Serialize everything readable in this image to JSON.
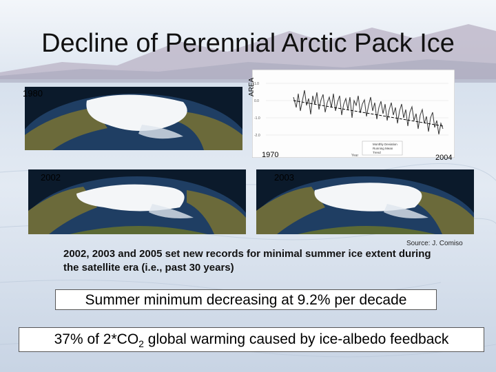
{
  "slide": {
    "title": "Decline of Perennial Arctic Pack Ice",
    "labels": {
      "y1980": "1980",
      "y2002": "2002",
      "y2003": "2003"
    },
    "chart": {
      "ylabel": "AREA",
      "xstart": "1970",
      "xend": "2004",
      "xlabel": "Year",
      "legend": [
        "Monthly Deviation",
        "Running Mean",
        "Trend"
      ]
    },
    "source": "Source: J. Comiso",
    "caption": "2002, 2003 and 2005 set new records for minimal summer ice extent during the satellite era (i.e., past 30 years)",
    "box1": "Summer minimum decreasing at  9.2% per decade",
    "box2_pre": "37% of 2*CO",
    "box2_sub": "2",
    "box2_post": " global warming caused by ice-albedo feedback"
  },
  "colors": {
    "ice": "#f4f6f8",
    "ocean": "#1d3a5e",
    "land": "#6b6a3a",
    "sky": "#eef2f7"
  }
}
